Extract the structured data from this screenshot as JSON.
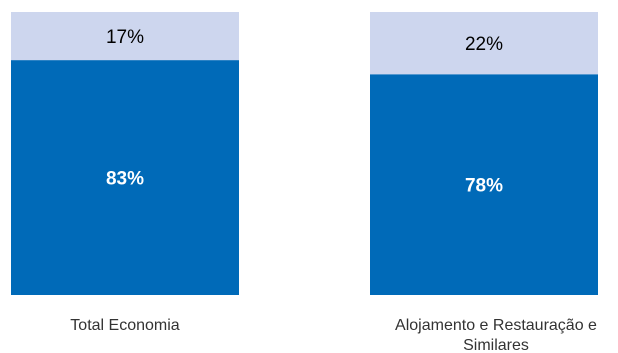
{
  "chart_data": {
    "type": "bar",
    "stacked": true,
    "orientation": "vertical",
    "categories": [
      "Total Economia",
      "Alojamento e Restauração e Similares"
    ],
    "series": [
      {
        "values": [
          83,
          78
        ],
        "labels": [
          "83%",
          "78%"
        ],
        "color": "#006ab8"
      },
      {
        "values": [
          17,
          22
        ],
        "labels": [
          "17%",
          "22%"
        ],
        "color": "#cdd6ee"
      }
    ],
    "ylim": [
      0,
      100
    ],
    "title": "",
    "xlabel": "",
    "ylabel": "",
    "grid": false,
    "legend": "none"
  }
}
